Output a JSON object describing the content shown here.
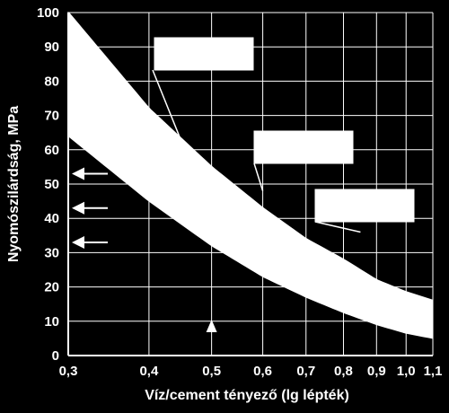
{
  "chart_data": {
    "type": "area",
    "title": "",
    "xlabel": "Víz/cement tényező (lg lépték)",
    "ylabel": "Nyomószilárdság, MPa",
    "x_scale": "log",
    "xlim": [
      0.3,
      1.1
    ],
    "ylim": [
      0,
      100
    ],
    "x_ticks": [
      0.3,
      0.4,
      0.5,
      0.6,
      0.7,
      0.8,
      0.9,
      1.0,
      1.1
    ],
    "x_tick_labels": [
      "0,3",
      "0,4",
      "0,5",
      "0,6",
      "0,7",
      "0,8",
      "0,9",
      "1,0",
      "1,1"
    ],
    "y_ticks": [
      0,
      10,
      20,
      30,
      40,
      50,
      60,
      70,
      80,
      90,
      100
    ],
    "y_tick_labels": [
      "0",
      "10",
      "20",
      "30",
      "40",
      "50",
      "60",
      "70",
      "80",
      "90",
      "100"
    ],
    "grid": true,
    "series": [
      {
        "role": "upper_bound",
        "x": [
          0.3,
          0.4,
          0.5,
          0.6,
          0.7,
          0.8,
          0.9,
          1.0,
          1.1
        ],
        "values": [
          100,
          72,
          55,
          43,
          34,
          28,
          22,
          18.5,
          16
        ]
      },
      {
        "role": "lower_bound",
        "x": [
          0.3,
          0.4,
          0.5,
          0.6,
          0.7,
          0.8,
          0.9,
          1.0,
          1.1
        ],
        "values": [
          64,
          45,
          32,
          23,
          17,
          12.5,
          9,
          6.5,
          5
        ]
      }
    ],
    "annotation_boxes": [
      {
        "label": "",
        "points_to": [
          0.45,
          62
        ]
      },
      {
        "label": "",
        "points_to": [
          0.6,
          48
        ]
      },
      {
        "label": "",
        "points_to": [
          0.85,
          36
        ]
      }
    ],
    "arrows": [
      {
        "direction": "left",
        "y": 53
      },
      {
        "direction": "left",
        "y": 43
      },
      {
        "direction": "left",
        "y": 33
      },
      {
        "direction": "up",
        "x": 0.5
      }
    ],
    "colors": {
      "background": "#000000",
      "foreground": "#ffffff"
    }
  }
}
